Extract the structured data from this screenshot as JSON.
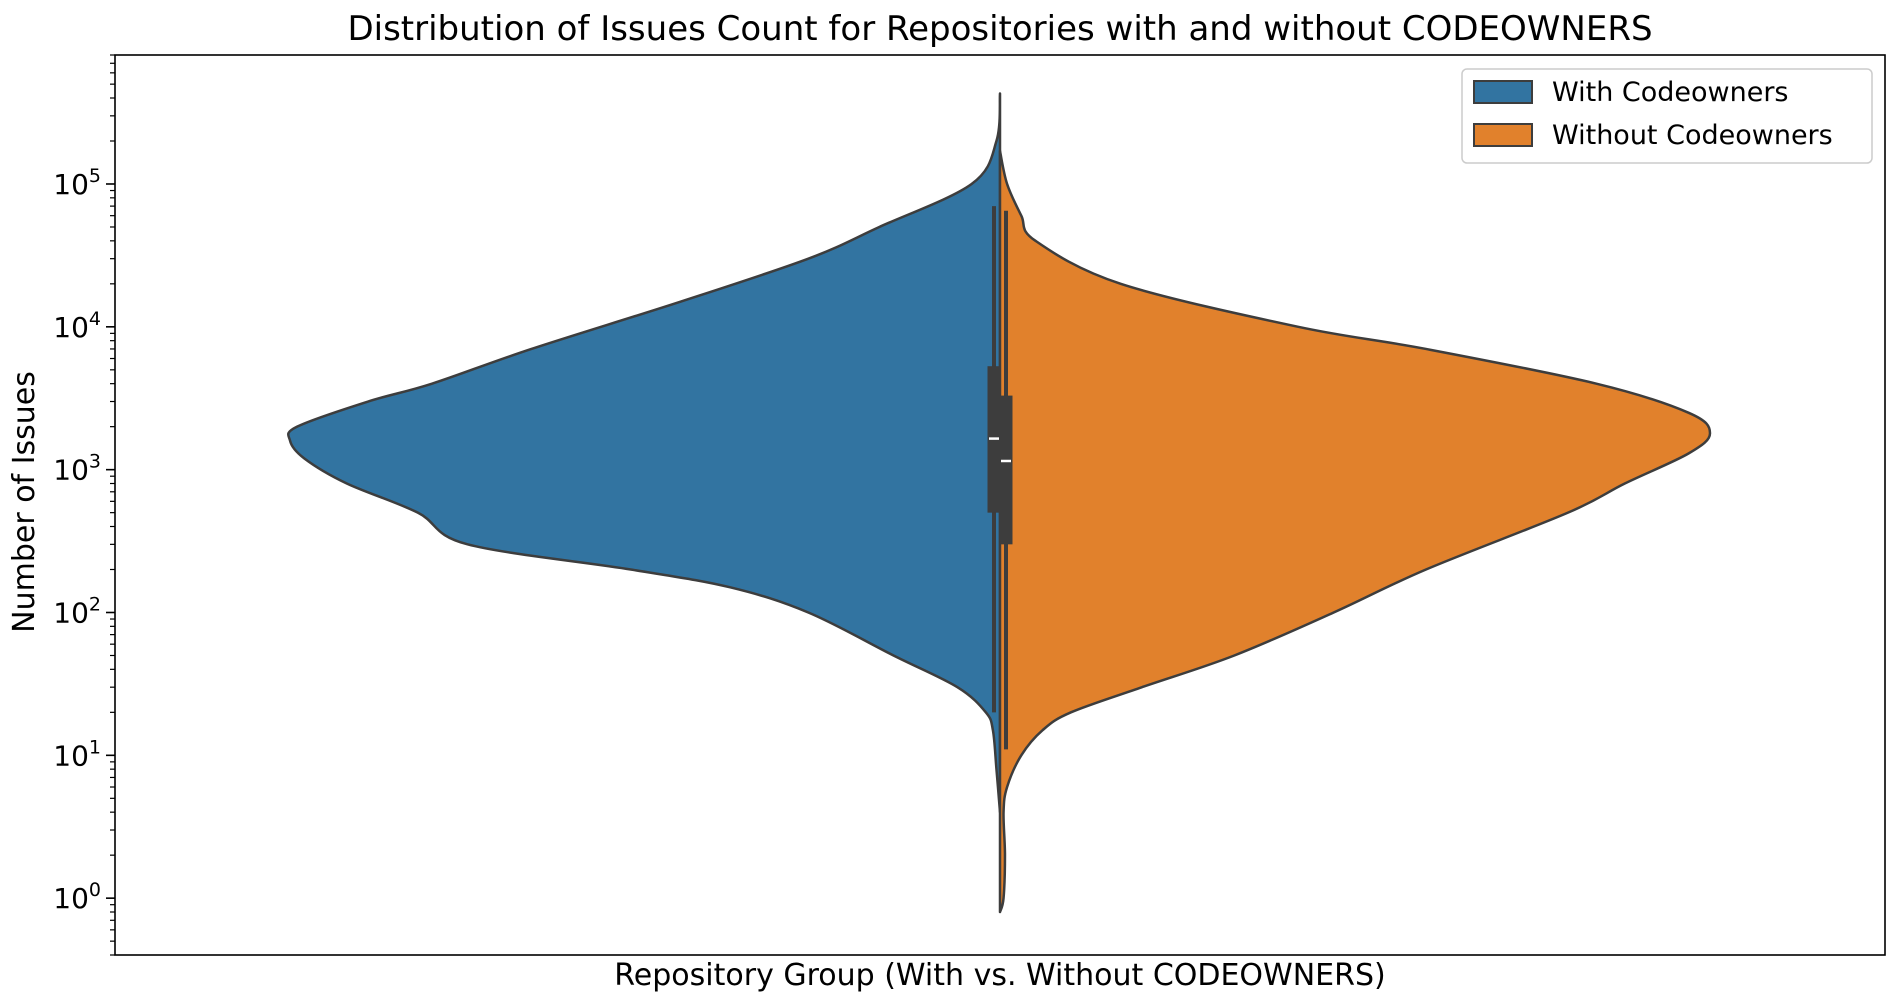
{
  "chart_data": {
    "type": "violin",
    "split": true,
    "title": "Distribution of Issues Count for Repositories with and without CODEOWNERS",
    "xlabel": "Repository Group (With vs. Without CODEOWNERS)",
    "ylabel": "Number of Issues",
    "yscale": "log",
    "ylim": [
      0.4,
      800000
    ],
    "yticks": [
      {
        "value": 1,
        "base": "10",
        "exp": "0"
      },
      {
        "value": 10,
        "base": "10",
        "exp": "1"
      },
      {
        "value": 100,
        "base": "10",
        "exp": "2"
      },
      {
        "value": 1000,
        "base": "10",
        "exp": "3"
      },
      {
        "value": 10000,
        "base": "10",
        "exp": "4"
      },
      {
        "value": 100000,
        "base": "10",
        "exp": "5"
      }
    ],
    "grid": false,
    "legend": {
      "placement": "top-right"
    },
    "series": [
      {
        "name": "With Codeowners",
        "side": "left",
        "color": "#3274a1",
        "range": [
          4,
          430000
        ],
        "density": [
          [
            4,
            0.0
          ],
          [
            8,
            0.005
          ],
          [
            15,
            0.01
          ],
          [
            20,
            0.02
          ],
          [
            30,
            0.06
          ],
          [
            50,
            0.15
          ],
          [
            100,
            0.27
          ],
          [
            150,
            0.38
          ],
          [
            200,
            0.52
          ],
          [
            300,
            0.75
          ],
          [
            500,
            0.82
          ],
          [
            800,
            0.92
          ],
          [
            1200,
            0.98
          ],
          [
            1600,
            1.0
          ],
          [
            2000,
            0.99
          ],
          [
            3000,
            0.89
          ],
          [
            4000,
            0.8
          ],
          [
            7000,
            0.66
          ],
          [
            15000,
            0.45
          ],
          [
            30000,
            0.27
          ],
          [
            50000,
            0.17
          ],
          [
            100000,
            0.04
          ],
          [
            200000,
            0.005
          ],
          [
            430000,
            0.0
          ]
        ],
        "box": {
          "whisker_low": 20,
          "q1": 500,
          "median": 1650,
          "q3": 5300,
          "whisker_high": 70000
        }
      },
      {
        "name": "Without Codeowners",
        "side": "right",
        "color": "#e1812c",
        "range": [
          0.8,
          170000
        ],
        "density": [
          [
            0.8,
            0.0
          ],
          [
            1,
            0.005
          ],
          [
            2,
            0.007
          ],
          [
            4,
            0.005
          ],
          [
            6,
            0.01
          ],
          [
            10,
            0.03
          ],
          [
            15,
            0.06
          ],
          [
            20,
            0.1
          ],
          [
            30,
            0.2
          ],
          [
            50,
            0.33
          ],
          [
            100,
            0.47
          ],
          [
            200,
            0.6
          ],
          [
            500,
            0.8
          ],
          [
            800,
            0.88
          ],
          [
            1300,
            0.97
          ],
          [
            1800,
            1.0
          ],
          [
            2500,
            0.97
          ],
          [
            4000,
            0.84
          ],
          [
            7000,
            0.6
          ],
          [
            10000,
            0.42
          ],
          [
            20000,
            0.17
          ],
          [
            40000,
            0.05
          ],
          [
            60000,
            0.03
          ],
          [
            100000,
            0.01
          ],
          [
            170000,
            0.0
          ]
        ],
        "box": {
          "whisker_low": 11,
          "q1": 300,
          "median": 1150,
          "q3": 3300,
          "whisker_high": 65000
        }
      }
    ]
  }
}
